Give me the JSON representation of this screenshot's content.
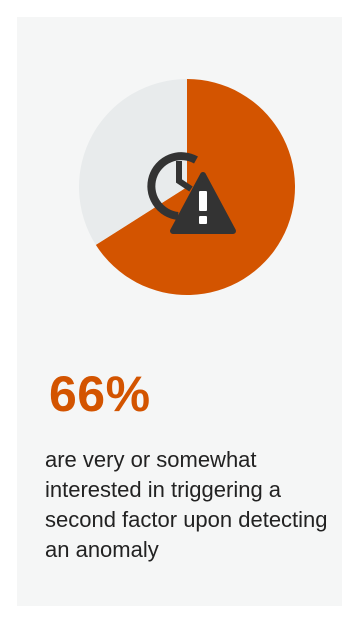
{
  "chart_data": {
    "type": "pie",
    "slices": [
      {
        "label": "very or somewhat interested",
        "value": 66
      },
      {
        "label": "",
        "value": 34
      }
    ],
    "title": "",
    "colors": {
      "primary": "#d35400",
      "remainder": "#e8ebec"
    }
  },
  "icon": {
    "name": "clock-warning-icon",
    "color": "#333333"
  },
  "stat": {
    "value": "66%",
    "caption": "are very or somewhat interested in triggering a second factor upon detecting an anomaly"
  },
  "colors": {
    "accent": "#d35400",
    "card_background": "#f5f6f6",
    "text": "#222222"
  }
}
